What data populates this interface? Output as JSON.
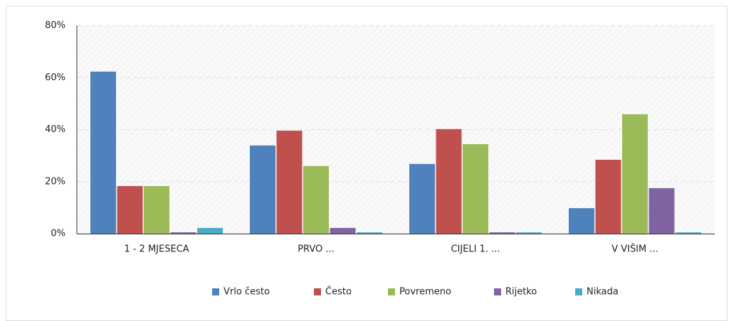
{
  "chart_data": {
    "type": "bar",
    "categories": [
      "1 - 2 MJESECA",
      "PRVO ...",
      "CIJELI 1. ...",
      "V VIŠIM ..."
    ],
    "series": [
      {
        "name": "Vrlo često",
        "color": "#4f81bd",
        "values": [
          62.3,
          33.9,
          26.8,
          9.8
        ]
      },
      {
        "name": "Često",
        "color": "#c0504d",
        "values": [
          18.3,
          39.6,
          40.2,
          28.4
        ]
      },
      {
        "name": "Povremeno",
        "color": "#9bbb59",
        "values": [
          18.3,
          26,
          34.4,
          45.9
        ]
      },
      {
        "name": "Rijetko",
        "color": "#8064a2",
        "values": [
          0.5,
          2.2,
          0.5,
          17.5
        ]
      },
      {
        "name": "Nikada",
        "color": "#4bacc6",
        "values": [
          2.2,
          0.5,
          0.5,
          0.5
        ]
      }
    ],
    "ylim": [
      0,
      80
    ],
    "yticks": [
      {
        "value": 0,
        "label": "0%"
      },
      {
        "value": 20,
        "label": "20%"
      },
      {
        "value": 40,
        "label": "40%"
      },
      {
        "value": 60,
        "label": "60%"
      },
      {
        "value": 80,
        "label": "80%"
      }
    ],
    "grid": true,
    "legend": "bottom"
  }
}
